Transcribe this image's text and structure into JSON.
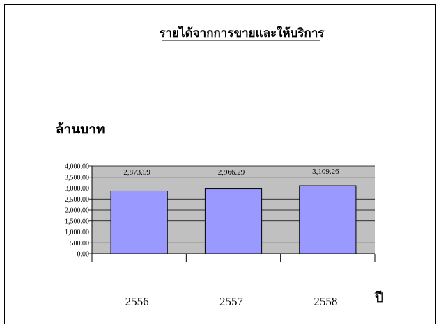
{
  "chart_data": {
    "type": "bar",
    "title": "รายได้จากการขายและให้บริการ",
    "ylabel": "ล้านบาท",
    "xlabel": "ปี",
    "categories": [
      "2556",
      "2557",
      "2558"
    ],
    "values": [
      2873.59,
      2966.29,
      3109.26
    ],
    "data_labels": [
      "2,873.59",
      "2,966.29",
      "3,109.26"
    ],
    "ylim": [
      0,
      4000
    ],
    "yticks": [
      0,
      500,
      1000,
      1500,
      2000,
      2500,
      3000,
      3500,
      4000
    ],
    "ytick_labels": [
      "0.00",
      "500.00",
      "1,000.00",
      "1,500.00",
      "2,000.00",
      "2,500.00",
      "3,000.00",
      "3,500.00",
      "4,000.00"
    ],
    "grid": true,
    "colors": {
      "bar_fill": "#9999ff",
      "bar_stroke": "#000000",
      "plot_bg": "#c0c0c0",
      "grid": "#000000"
    }
  }
}
